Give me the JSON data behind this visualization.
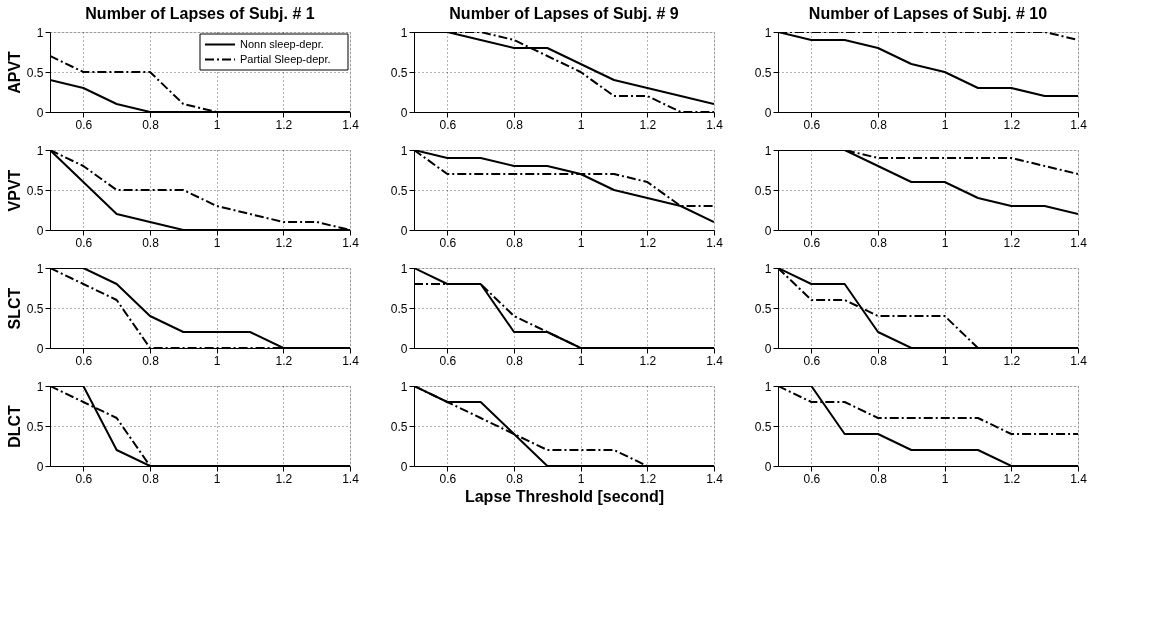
{
  "chart_data": [
    {
      "type": "line",
      "title": "Number of Lapses of Subj. # 1",
      "ylabel": "APVT",
      "x": [
        0.5,
        0.6,
        0.7,
        0.8,
        0.9,
        1.0,
        1.1,
        1.2,
        1.3,
        1.4
      ],
      "xlim": [
        0.5,
        1.4
      ],
      "ylim": [
        0,
        1
      ],
      "xticks": [
        0.6,
        0.8,
        1,
        1.2,
        1.4
      ],
      "yticks": [
        0,
        0.5,
        1
      ],
      "grid": true,
      "legend": "top right",
      "series": [
        {
          "name": "Nonn sleep-depr.",
          "color": "#000000",
          "line_style": "solid",
          "values": [
            0.4,
            0.3,
            0.1,
            0,
            0,
            0,
            0,
            0,
            0,
            0
          ]
        },
        {
          "name": "Partial Sleep-depr.",
          "color": "#000000",
          "line_style": "dashed",
          "values": [
            0.7,
            0.5,
            0.5,
            0.5,
            0.1,
            0,
            0,
            0,
            0,
            0
          ]
        }
      ]
    },
    {
      "type": "line",
      "title": "Number of Lapses of Subj. # 9",
      "x": [
        0.5,
        0.6,
        0.7,
        0.8,
        0.9,
        1.0,
        1.1,
        1.2,
        1.3,
        1.4
      ],
      "xlim": [
        0.5,
        1.4
      ],
      "ylim": [
        0,
        1
      ],
      "xticks": [
        0.6,
        0.8,
        1,
        1.2,
        1.4
      ],
      "yticks": [
        0,
        0.5,
        1
      ],
      "grid": true,
      "series": [
        {
          "color": "#000000",
          "line_style": "solid",
          "values": [
            1,
            1,
            0.9,
            0.8,
            0.8,
            0.6,
            0.4,
            0.3,
            0.2,
            0.1
          ]
        },
        {
          "color": "#000000",
          "line_style": "dashed",
          "values": [
            1,
            1,
            1,
            0.9,
            0.7,
            0.5,
            0.2,
            0.2,
            0,
            0
          ]
        }
      ]
    },
    {
      "type": "line",
      "title": "Number of Lapses of Subj. # 10",
      "x": [
        0.5,
        0.6,
        0.7,
        0.8,
        0.9,
        1.0,
        1.1,
        1.2,
        1.3,
        1.4
      ],
      "xlim": [
        0.5,
        1.4
      ],
      "ylim": [
        0,
        1
      ],
      "xticks": [
        0.6,
        0.8,
        1,
        1.2,
        1.4
      ],
      "yticks": [
        0,
        0.5,
        1
      ],
      "grid": true,
      "series": [
        {
          "color": "#000000",
          "line_style": "solid",
          "values": [
            1,
            0.9,
            0.9,
            0.8,
            0.6,
            0.5,
            0.3,
            0.3,
            0.2,
            0.2
          ]
        },
        {
          "color": "#000000",
          "line_style": "dashed",
          "values": [
            1,
            1,
            1,
            1,
            1,
            1,
            1,
            1,
            1,
            0.9
          ]
        }
      ]
    },
    {
      "type": "line",
      "ylabel": "VPVT",
      "x": [
        0.5,
        0.6,
        0.7,
        0.8,
        0.9,
        1.0,
        1.1,
        1.2,
        1.3,
        1.4
      ],
      "xlim": [
        0.5,
        1.4
      ],
      "ylim": [
        0,
        1
      ],
      "xticks": [
        0.6,
        0.8,
        1,
        1.2,
        1.4
      ],
      "yticks": [
        0,
        0.5,
        1
      ],
      "grid": true,
      "series": [
        {
          "color": "#000000",
          "line_style": "solid",
          "values": [
            1,
            0.6,
            0.2,
            0.1,
            0,
            0,
            0,
            0,
            0,
            0
          ]
        },
        {
          "color": "#000000",
          "line_style": "dashed",
          "values": [
            1,
            0.8,
            0.5,
            0.5,
            0.5,
            0.3,
            0.2,
            0.1,
            0.1,
            0
          ]
        }
      ]
    },
    {
      "type": "line",
      "x": [
        0.5,
        0.6,
        0.7,
        0.8,
        0.9,
        1.0,
        1.1,
        1.2,
        1.3,
        1.4
      ],
      "xlim": [
        0.5,
        1.4
      ],
      "ylim": [
        0,
        1
      ],
      "xticks": [
        0.6,
        0.8,
        1,
        1.2,
        1.4
      ],
      "yticks": [
        0,
        0.5,
        1
      ],
      "grid": true,
      "series": [
        {
          "color": "#000000",
          "line_style": "solid",
          "values": [
            1,
            0.9,
            0.9,
            0.8,
            0.8,
            0.7,
            0.5,
            0.4,
            0.3,
            0.1
          ]
        },
        {
          "color": "#000000",
          "line_style": "dashed",
          "values": [
            1,
            0.7,
            0.7,
            0.7,
            0.7,
            0.7,
            0.7,
            0.6,
            0.3,
            0.3
          ]
        }
      ]
    },
    {
      "type": "line",
      "x": [
        0.5,
        0.6,
        0.7,
        0.8,
        0.9,
        1.0,
        1.1,
        1.2,
        1.3,
        1.4
      ],
      "xlim": [
        0.5,
        1.4
      ],
      "ylim": [
        0,
        1
      ],
      "xticks": [
        0.6,
        0.8,
        1,
        1.2,
        1.4
      ],
      "yticks": [
        0,
        0.5,
        1
      ],
      "grid": true,
      "series": [
        {
          "color": "#000000",
          "line_style": "solid",
          "values": [
            1,
            1,
            1,
            0.8,
            0.6,
            0.6,
            0.4,
            0.3,
            0.3,
            0.2
          ]
        },
        {
          "color": "#000000",
          "line_style": "dashed",
          "values": [
            1,
            1,
            1,
            0.9,
            0.9,
            0.9,
            0.9,
            0.9,
            0.8,
            0.7
          ]
        }
      ]
    },
    {
      "type": "line",
      "ylabel": "SLCT",
      "x": [
        0.5,
        0.6,
        0.7,
        0.8,
        0.9,
        1.0,
        1.1,
        1.2,
        1.3,
        1.4
      ],
      "xlim": [
        0.5,
        1.4
      ],
      "ylim": [
        0,
        1
      ],
      "xticks": [
        0.6,
        0.8,
        1,
        1.2,
        1.4
      ],
      "yticks": [
        0,
        0.5,
        1
      ],
      "grid": true,
      "series": [
        {
          "color": "#000000",
          "line_style": "solid",
          "values": [
            1,
            1,
            0.8,
            0.4,
            0.2,
            0.2,
            0.2,
            0,
            0,
            0
          ]
        },
        {
          "color": "#000000",
          "line_style": "dashed",
          "values": [
            1,
            0.8,
            0.6,
            0,
            0,
            0,
            0,
            0,
            0,
            0
          ]
        }
      ]
    },
    {
      "type": "line",
      "x": [
        0.5,
        0.6,
        0.7,
        0.8,
        0.9,
        1.0,
        1.1,
        1.2,
        1.3,
        1.4
      ],
      "xlim": [
        0.5,
        1.4
      ],
      "ylim": [
        0,
        1
      ],
      "xticks": [
        0.6,
        0.8,
        1,
        1.2,
        1.4
      ],
      "yticks": [
        0,
        0.5,
        1
      ],
      "grid": true,
      "series": [
        {
          "color": "#000000",
          "line_style": "solid",
          "values": [
            1,
            0.8,
            0.8,
            0.2,
            0.2,
            0,
            0,
            0,
            0,
            0
          ]
        },
        {
          "color": "#000000",
          "line_style": "dashed",
          "values": [
            0.8,
            0.8,
            0.8,
            0.4,
            0.2,
            0,
            0,
            0,
            0,
            0
          ]
        }
      ]
    },
    {
      "type": "line",
      "x": [
        0.5,
        0.6,
        0.7,
        0.8,
        0.9,
        1.0,
        1.1,
        1.2,
        1.3,
        1.4
      ],
      "xlim": [
        0.5,
        1.4
      ],
      "ylim": [
        0,
        1
      ],
      "xticks": [
        0.6,
        0.8,
        1,
        1.2,
        1.4
      ],
      "yticks": [
        0,
        0.5,
        1
      ],
      "grid": true,
      "series": [
        {
          "color": "#000000",
          "line_style": "solid",
          "values": [
            1,
            0.8,
            0.8,
            0.2,
            0,
            0,
            0,
            0,
            0,
            0
          ]
        },
        {
          "color": "#000000",
          "line_style": "dashed",
          "values": [
            1,
            0.6,
            0.6,
            0.4,
            0.4,
            0.4,
            0,
            0,
            0,
            0
          ]
        }
      ]
    },
    {
      "type": "line",
      "ylabel": "DLCT",
      "x": [
        0.5,
        0.6,
        0.7,
        0.8,
        0.9,
        1.0,
        1.1,
        1.2,
        1.3,
        1.4
      ],
      "xlim": [
        0.5,
        1.4
      ],
      "ylim": [
        0,
        1
      ],
      "xticks": [
        0.6,
        0.8,
        1,
        1.2,
        1.4
      ],
      "yticks": [
        0,
        0.5,
        1
      ],
      "grid": true,
      "series": [
        {
          "color": "#000000",
          "line_style": "solid",
          "values": [
            1,
            1,
            0.2,
            0,
            0,
            0,
            0,
            0,
            0,
            0
          ]
        },
        {
          "color": "#000000",
          "line_style": "dashed",
          "values": [
            1,
            0.8,
            0.6,
            0,
            0,
            0,
            0,
            0,
            0,
            0
          ]
        }
      ]
    },
    {
      "type": "line",
      "xlabel": "Lapse Threshold [second]",
      "x": [
        0.5,
        0.6,
        0.7,
        0.8,
        0.9,
        1.0,
        1.1,
        1.2,
        1.3,
        1.4
      ],
      "xlim": [
        0.5,
        1.4
      ],
      "ylim": [
        0,
        1
      ],
      "xticks": [
        0.6,
        0.8,
        1,
        1.2,
        1.4
      ],
      "yticks": [
        0,
        0.5,
        1
      ],
      "grid": true,
      "series": [
        {
          "color": "#000000",
          "line_style": "solid",
          "values": [
            1,
            0.8,
            0.8,
            0.4,
            0,
            0,
            0,
            0,
            0,
            0
          ]
        },
        {
          "color": "#000000",
          "line_style": "dashed",
          "values": [
            1,
            0.8,
            0.6,
            0.4,
            0.2,
            0.2,
            0.2,
            0,
            0,
            0
          ]
        }
      ]
    },
    {
      "type": "line",
      "x": [
        0.5,
        0.6,
        0.7,
        0.8,
        0.9,
        1.0,
        1.1,
        1.2,
        1.3,
        1.4
      ],
      "xlim": [
        0.5,
        1.4
      ],
      "ylim": [
        0,
        1
      ],
      "xticks": [
        0.6,
        0.8,
        1,
        1.2,
        1.4
      ],
      "yticks": [
        0,
        0.5,
        1
      ],
      "grid": true,
      "series": [
        {
          "color": "#000000",
          "line_style": "solid",
          "values": [
            1,
            1,
            0.4,
            0.4,
            0.2,
            0.2,
            0.2,
            0,
            0,
            0
          ]
        },
        {
          "color": "#000000",
          "line_style": "dashed",
          "values": [
            1,
            0.8,
            0.8,
            0.6,
            0.6,
            0.6,
            0.6,
            0.4,
            0.4,
            0.4
          ]
        }
      ]
    }
  ]
}
